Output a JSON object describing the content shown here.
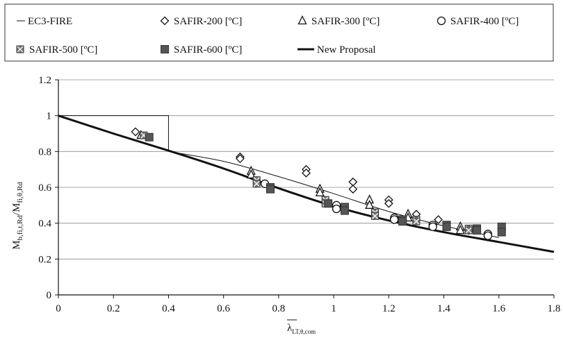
{
  "chart_data": {
    "type": "scatter",
    "xlabel_main": "λ",
    "xlabel_sub": "LT,θ,com",
    "ylabel_main": "M",
    "ylabel_sub1": "b,fi,t,Rd",
    "ylabel_sep": "/M",
    "ylabel_sub2": "fi,θ,Rd",
    "xlim": [
      0,
      1.8
    ],
    "ylim": [
      0,
      1.2
    ],
    "xticks": [
      "0",
      "0.2",
      "0.4",
      "0.6",
      "0.8",
      "1",
      "1.2",
      "1.4",
      "1.6",
      "1.8"
    ],
    "yticks": [
      "0",
      "0.2",
      "0.4",
      "0.6",
      "0.8",
      "1",
      "1.2"
    ],
    "grid": "horizontal",
    "legend_position": "top",
    "legend": [
      {
        "name": "EC3-FIRE",
        "marker": "thin-line"
      },
      {
        "name": "SAFIR-200 [ºC]",
        "marker": "diamond"
      },
      {
        "name": "SAFIR-300 [ºC]",
        "marker": "triangle"
      },
      {
        "name": "SAFIR-400 [ºC]",
        "marker": "circle"
      },
      {
        "name": "SAFIR-500 [ºC]",
        "marker": "crossed-square"
      },
      {
        "name": "SAFIR-600 [ºC]",
        "marker": "filled-square"
      },
      {
        "name": "New Proposal",
        "marker": "thick-line"
      }
    ],
    "lines": [
      {
        "name": "EC3-FIRE step",
        "style": "thin",
        "x": [
          0,
          0.4,
          0.4
        ],
        "y": [
          1,
          1,
          0.8
        ]
      },
      {
        "name": "EC3-FIRE",
        "style": "thin",
        "x": [
          0.4,
          0.6,
          0.8,
          1.0,
          1.2,
          1.4,
          1.6
        ],
        "y": [
          0.8,
          0.745,
          0.66,
          0.565,
          0.465,
          0.385,
          0.32
        ]
      },
      {
        "name": "New Proposal",
        "style": "thick",
        "x": [
          0,
          0.2,
          0.4,
          0.6,
          0.8,
          1.0,
          1.2,
          1.4,
          1.6,
          1.8
        ],
        "y": [
          1.0,
          0.9,
          0.805,
          0.705,
          0.595,
          0.495,
          0.415,
          0.35,
          0.295,
          0.24
        ]
      }
    ],
    "series": [
      {
        "name": "SAFIR-200 [ºC]",
        "marker": "diamond",
        "points": [
          [
            0.28,
            0.91
          ],
          [
            0.66,
            0.77
          ],
          [
            0.66,
            0.76
          ],
          [
            0.9,
            0.7
          ],
          [
            0.9,
            0.68
          ],
          [
            1.07,
            0.63
          ],
          [
            1.07,
            0.59
          ],
          [
            1.2,
            0.53
          ],
          [
            1.2,
            0.51
          ],
          [
            1.3,
            0.45
          ],
          [
            1.38,
            0.42
          ],
          [
            1.49,
            0.36
          ]
        ]
      },
      {
        "name": "SAFIR-300 [ºC]",
        "marker": "triangle",
        "points": [
          [
            0.3,
            0.89
          ],
          [
            0.7,
            0.69
          ],
          [
            0.7,
            0.67
          ],
          [
            0.95,
            0.59
          ],
          [
            0.95,
            0.57
          ],
          [
            1.13,
            0.53
          ],
          [
            1.13,
            0.5
          ],
          [
            1.27,
            0.45
          ],
          [
            1.27,
            0.43
          ],
          [
            1.46,
            0.38
          ],
          [
            1.46,
            0.36
          ]
        ]
      },
      {
        "name": "SAFIR-400 [ºC]",
        "marker": "circle",
        "points": [
          [
            0.75,
            0.62
          ],
          [
            1.01,
            0.5
          ],
          [
            1.01,
            0.48
          ],
          [
            1.22,
            0.43
          ],
          [
            1.22,
            0.42
          ],
          [
            1.36,
            0.39
          ],
          [
            1.36,
            0.38
          ],
          [
            1.56,
            0.34
          ],
          [
            1.56,
            0.33
          ]
        ]
      },
      {
        "name": "SAFIR-500 [ºC]",
        "marker": "crossed-square",
        "points": [
          [
            0.31,
            0.89
          ],
          [
            0.72,
            0.64
          ],
          [
            0.72,
            0.62
          ],
          [
            0.97,
            0.53
          ],
          [
            0.97,
            0.51
          ],
          [
            1.15,
            0.46
          ],
          [
            1.15,
            0.44
          ],
          [
            1.3,
            0.42
          ],
          [
            1.3,
            0.41
          ],
          [
            1.49,
            0.37
          ],
          [
            1.49,
            0.36
          ]
        ]
      },
      {
        "name": "SAFIR-600 [ºC]",
        "marker": "filled-square",
        "points": [
          [
            0.33,
            0.88
          ],
          [
            0.77,
            0.6
          ],
          [
            0.77,
            0.59
          ],
          [
            0.98,
            0.51
          ],
          [
            1.04,
            0.49
          ],
          [
            1.04,
            0.47
          ],
          [
            1.25,
            0.42
          ],
          [
            1.25,
            0.41
          ],
          [
            1.41,
            0.39
          ],
          [
            1.41,
            0.38
          ],
          [
            1.52,
            0.37
          ],
          [
            1.52,
            0.36
          ],
          [
            1.61,
            0.38
          ],
          [
            1.61,
            0.35
          ]
        ]
      }
    ]
  }
}
